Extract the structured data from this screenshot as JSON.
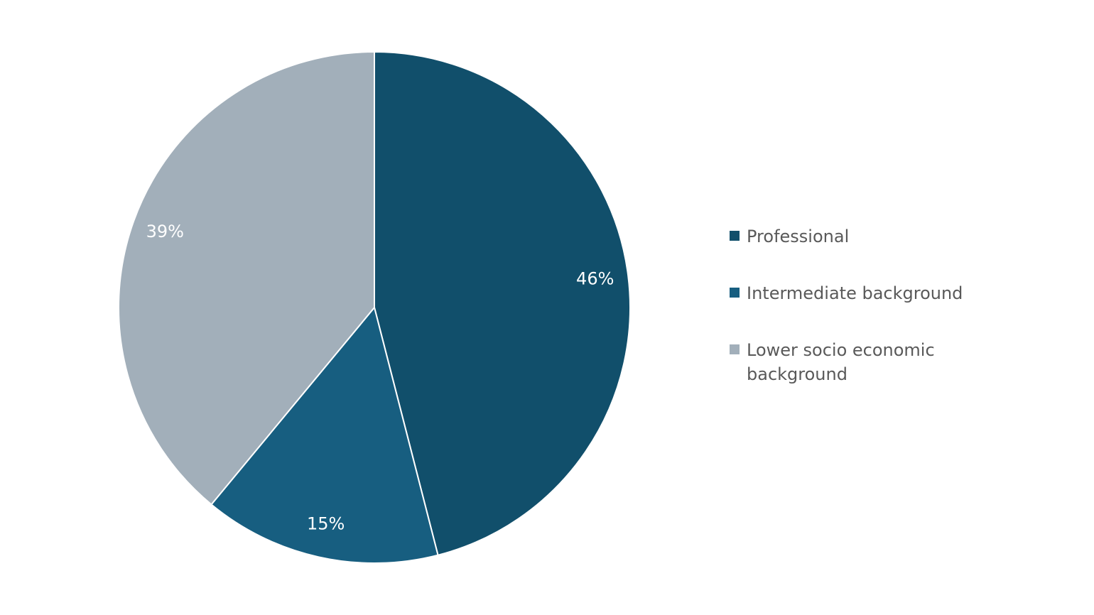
{
  "chart_data": {
    "type": "pie",
    "categories": [
      "Professional",
      "Intermediate background",
      "Lower socio economic background"
    ],
    "values": [
      46,
      15,
      39
    ],
    "value_labels": [
      "46%",
      "15%",
      "39%"
    ],
    "colors": [
      "#114f6b",
      "#175e80",
      "#a2afba"
    ]
  }
}
